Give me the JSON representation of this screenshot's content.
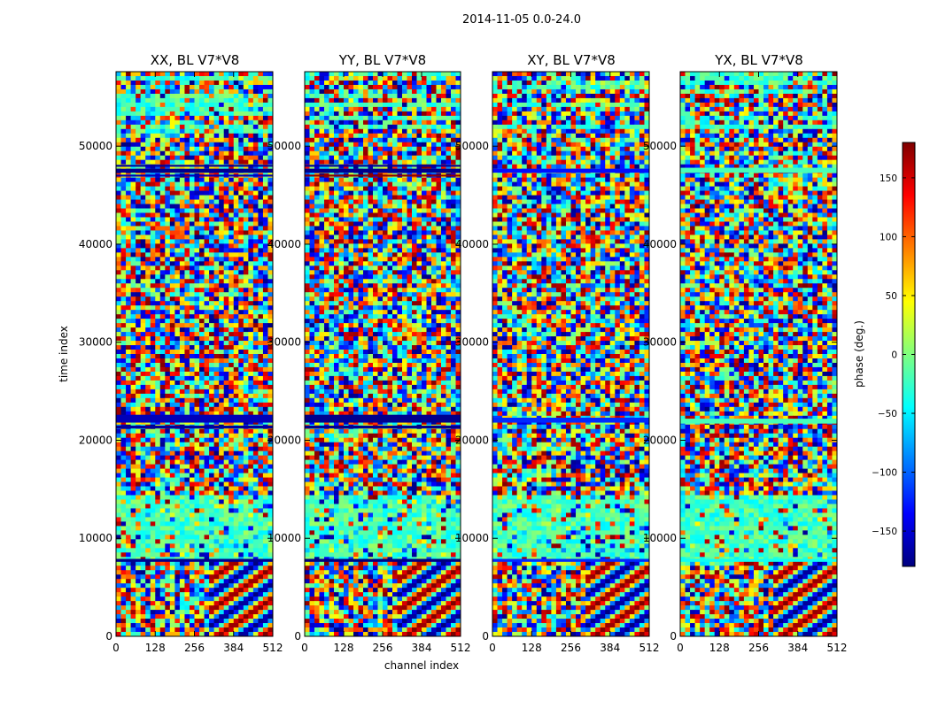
{
  "figure": {
    "suptitle": "2014-11-05 0.0-24.0"
  },
  "chart_data": {
    "type": "heatmap",
    "panels": [
      {
        "title": "XX, BL V7*V8"
      },
      {
        "title": "YY, BL V7*V8"
      },
      {
        "title": "XY, BL V7*V8"
      },
      {
        "title": "YX, BL V7*V8"
      }
    ],
    "xlabel": "channel index",
    "ylabel": "time index",
    "xlim": [
      0,
      512
    ],
    "ylim": [
      0,
      57600
    ],
    "xticks": [
      0,
      128,
      256,
      384,
      512
    ],
    "yticks": [
      0,
      10000,
      20000,
      30000,
      40000,
      50000
    ],
    "colorbar": {
      "label": "phase (deg.)",
      "range": [
        -180,
        180
      ],
      "ticks": [
        -150,
        -100,
        -50,
        0,
        50,
        100,
        150
      ],
      "colormap": "jet",
      "colors": [
        "#00007f",
        "#0000ff",
        "#007fff",
        "#00ffff",
        "#7fff7f",
        "#ffff00",
        "#ff7f00",
        "#ff0000",
        "#7f0000"
      ]
    },
    "grid": false
  }
}
